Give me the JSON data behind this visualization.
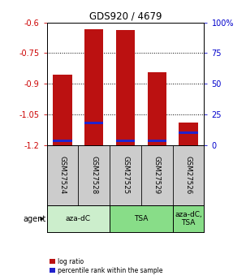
{
  "title": "GDS920 / 4679",
  "samples": [
    "GSM27524",
    "GSM27528",
    "GSM27525",
    "GSM27529",
    "GSM27526"
  ],
  "log_ratios": [
    -0.855,
    -0.635,
    -0.638,
    -0.845,
    -1.09
  ],
  "percentile_ranks": [
    3.5,
    18.0,
    3.5,
    3.5,
    10.0
  ],
  "bar_color": "#bb1111",
  "blue_color": "#2222cc",
  "ylim_left": [
    -1.2,
    -0.6
  ],
  "ylim_right": [
    0,
    100
  ],
  "yticks_left": [
    -1.2,
    -1.05,
    -0.9,
    -0.75,
    -0.6
  ],
  "yticks_right": [
    0,
    25,
    50,
    75,
    100
  ],
  "gridlines": [
    -0.75,
    -0.9,
    -1.05
  ],
  "agent_groups": [
    {
      "label": "aza-dC",
      "span": [
        0,
        2
      ],
      "color": "#cceecc"
    },
    {
      "label": "TSA",
      "span": [
        2,
        4
      ],
      "color": "#88dd88"
    },
    {
      "label": "aza-dC,\nTSA",
      "span": [
        4,
        5
      ],
      "color": "#88dd88"
    }
  ],
  "agent_label": "agent",
  "legend_items": [
    {
      "color": "#bb1111",
      "label": "log ratio"
    },
    {
      "color": "#2222cc",
      "label": "percentile rank within the sample"
    }
  ],
  "bg_color": "#ffffff",
  "sample_bg": "#cccccc",
  "bar_width": 0.6
}
